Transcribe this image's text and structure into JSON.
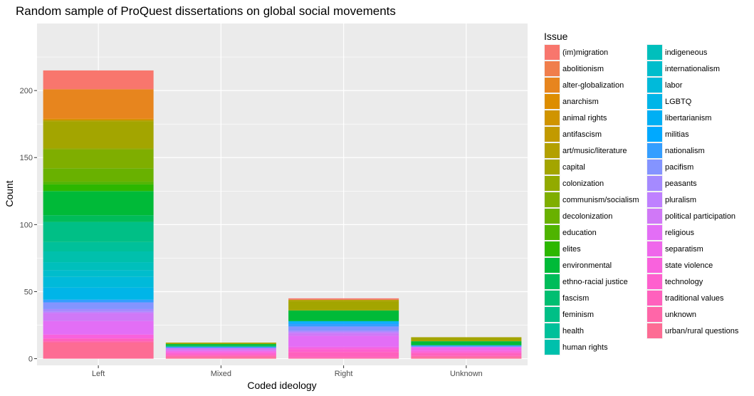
{
  "chart_data": {
    "type": "bar",
    "stacked": true,
    "title": "Random sample of ProQuest dissertations on global social movements",
    "xlabel": "Coded ideology",
    "ylabel": "Count",
    "categories": [
      "Left",
      "Mixed",
      "Right",
      "Unknown"
    ],
    "ylim": [
      -5,
      250
    ],
    "yticks": [
      0,
      50,
      100,
      150,
      200
    ],
    "grid": true,
    "legend": {
      "title": "Issue",
      "placement": "right",
      "columns": 2
    },
    "series": [
      {
        "name": "(im)migration",
        "color": "#F8766D",
        "values": [
          14,
          0,
          1,
          0
        ]
      },
      {
        "name": "abolitionism",
        "color": "#F07E4C",
        "values": [
          0,
          0,
          0,
          0
        ]
      },
      {
        "name": "alter-globalization",
        "color": "#E7851E",
        "values": [
          22,
          0,
          0,
          0
        ]
      },
      {
        "name": "anarchism",
        "color": "#DD8D00",
        "values": [
          1,
          0,
          0,
          0
        ]
      },
      {
        "name": "animal rights",
        "color": "#D09400",
        "values": [
          0,
          0,
          0,
          0
        ]
      },
      {
        "name": "antifascism",
        "color": "#C29A00",
        "values": [
          0,
          0,
          0,
          0
        ]
      },
      {
        "name": "art/music/literature",
        "color": "#B3A000",
        "values": [
          1,
          0,
          1,
          0
        ]
      },
      {
        "name": "capital",
        "color": "#A3A500",
        "values": [
          20,
          1,
          7,
          3
        ]
      },
      {
        "name": "colonization",
        "color": "#92AA00",
        "values": [
          1,
          0,
          0,
          0
        ]
      },
      {
        "name": "communism/socialism",
        "color": "#7FAE00",
        "values": [
          14,
          0,
          0,
          0
        ]
      },
      {
        "name": "decolonization",
        "color": "#69B100",
        "values": [
          10,
          0,
          0,
          0
        ]
      },
      {
        "name": "education",
        "color": "#4FB400",
        "values": [
          2,
          0,
          0,
          0
        ]
      },
      {
        "name": "elites",
        "color": "#2CB700",
        "values": [
          5,
          0,
          0,
          0
        ]
      },
      {
        "name": "environmental",
        "color": "#00BA38",
        "values": [
          18,
          1,
          8,
          3
        ]
      },
      {
        "name": "ethno-racial justice",
        "color": "#00BC59",
        "values": [
          5,
          1,
          0,
          0
        ]
      },
      {
        "name": "fascism",
        "color": "#00BE71",
        "values": [
          0,
          0,
          0,
          0
        ]
      },
      {
        "name": "feminism",
        "color": "#00BF86",
        "values": [
          15,
          0,
          0,
          0
        ]
      },
      {
        "name": "health",
        "color": "#00C09A",
        "values": [
          7,
          0,
          0,
          0
        ]
      },
      {
        "name": "human rights",
        "color": "#00C0AC",
        "values": [
          8,
          0,
          0,
          0
        ]
      },
      {
        "name": "indigeneous",
        "color": "#00BFBC",
        "values": [
          6,
          0,
          0,
          0
        ]
      },
      {
        "name": "internationalism",
        "color": "#00BDCC",
        "values": [
          5,
          0,
          0,
          0
        ]
      },
      {
        "name": "labor",
        "color": "#00BADA",
        "values": [
          8,
          0,
          0,
          0
        ]
      },
      {
        "name": "LGBTQ",
        "color": "#00B5E8",
        "values": [
          9,
          0,
          0,
          0
        ]
      },
      {
        "name": "libertarianism",
        "color": "#00AFF4",
        "values": [
          0,
          0,
          1,
          0
        ]
      },
      {
        "name": "militias",
        "color": "#00A9FF",
        "values": [
          0,
          0,
          1,
          0
        ]
      },
      {
        "name": "nationalism",
        "color": "#359EFF",
        "values": [
          2,
          1,
          2,
          1
        ]
      },
      {
        "name": "pacifism",
        "color": "#8494FF",
        "values": [
          5,
          0,
          3,
          0
        ]
      },
      {
        "name": "peasants",
        "color": "#A58AFF",
        "values": [
          2,
          0,
          1,
          0
        ]
      },
      {
        "name": "pluralism",
        "color": "#BF80FF",
        "values": [
          1,
          0,
          1,
          0
        ]
      },
      {
        "name": "political participation",
        "color": "#D078F7",
        "values": [
          6,
          2,
          2,
          1
        ]
      },
      {
        "name": "religious",
        "color": "#E36EF6",
        "values": [
          10,
          0,
          8,
          0
        ]
      },
      {
        "name": "separatism",
        "color": "#EF67EB",
        "values": [
          0,
          1,
          1,
          2
        ]
      },
      {
        "name": "state violence",
        "color": "#F962DD",
        "values": [
          3,
          1,
          1,
          1
        ]
      },
      {
        "name": "technology",
        "color": "#FE60CE",
        "values": [
          0,
          1,
          2,
          1
        ]
      },
      {
        "name": "traditional values",
        "color": "#FF61BD",
        "values": [
          2,
          1,
          4,
          2
        ]
      },
      {
        "name": "unknown",
        "color": "#FF66A8",
        "values": [
          1,
          1,
          1,
          1
        ]
      },
      {
        "name": "urban/rural questions",
        "color": "#FD6C94",
        "values": [
          12,
          1,
          0,
          1
        ]
      }
    ]
  }
}
